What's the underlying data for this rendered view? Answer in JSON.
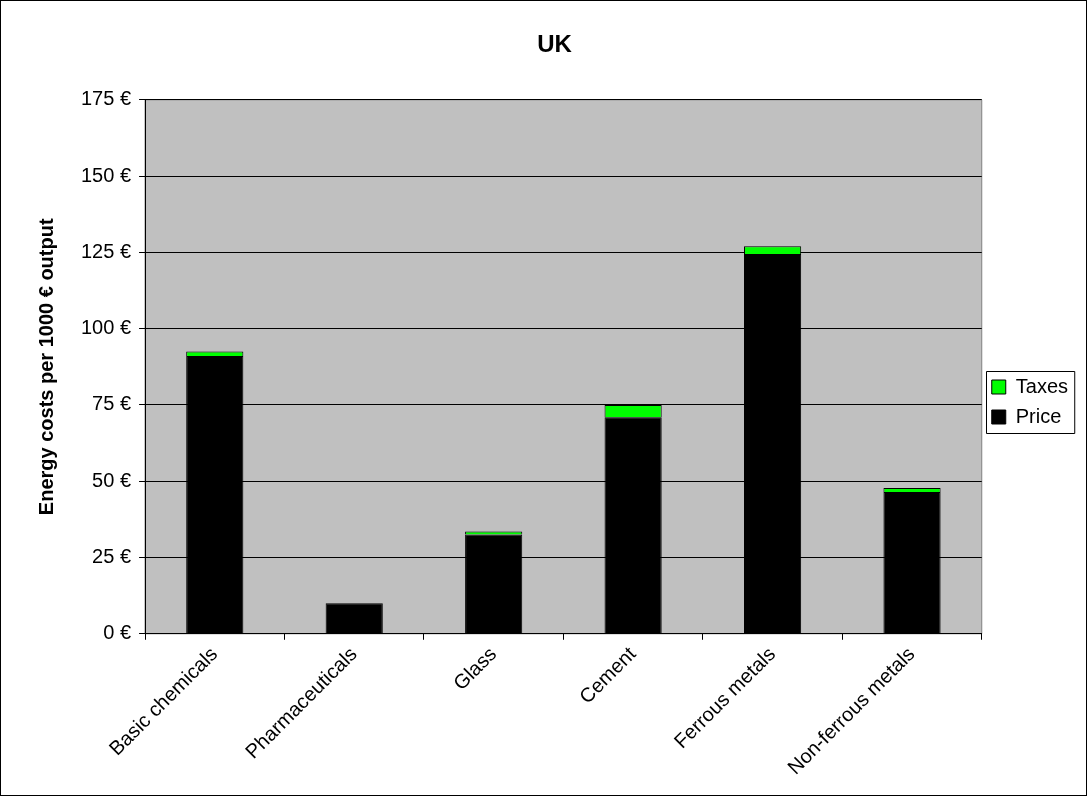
{
  "chart_data": {
    "type": "bar",
    "title": "UK",
    "ylabel": "Energy costs per 1000 € output",
    "stacked": true,
    "legend": "right",
    "grid": "y",
    "categories": [
      "Basic chemicals",
      "Pharmaceuticals",
      "Glass",
      "Cement",
      "Ferrous metals",
      "Non-ferrous metals"
    ],
    "series": [
      {
        "name": "Price",
        "color": "#000000",
        "values": [
          91,
          10,
          32.5,
          71,
          124.5,
          46.5
        ]
      },
      {
        "name": "Taxes",
        "color": "#00ff00",
        "values": [
          1.5,
          0,
          1,
          4,
          2.5,
          1.3
        ]
      }
    ],
    "ylim": [
      0,
      175
    ],
    "yticks": [
      {
        "value": 0,
        "label": "0 €"
      },
      {
        "value": 25,
        "label": "25 €"
      },
      {
        "value": 50,
        "label": "50 €"
      },
      {
        "value": 75,
        "label": "75 €"
      },
      {
        "value": 100,
        "label": "100 €"
      },
      {
        "value": 125,
        "label": "125 €"
      },
      {
        "value": 150,
        "label": "150 €"
      },
      {
        "value": 175,
        "label": "175 €"
      }
    ]
  }
}
